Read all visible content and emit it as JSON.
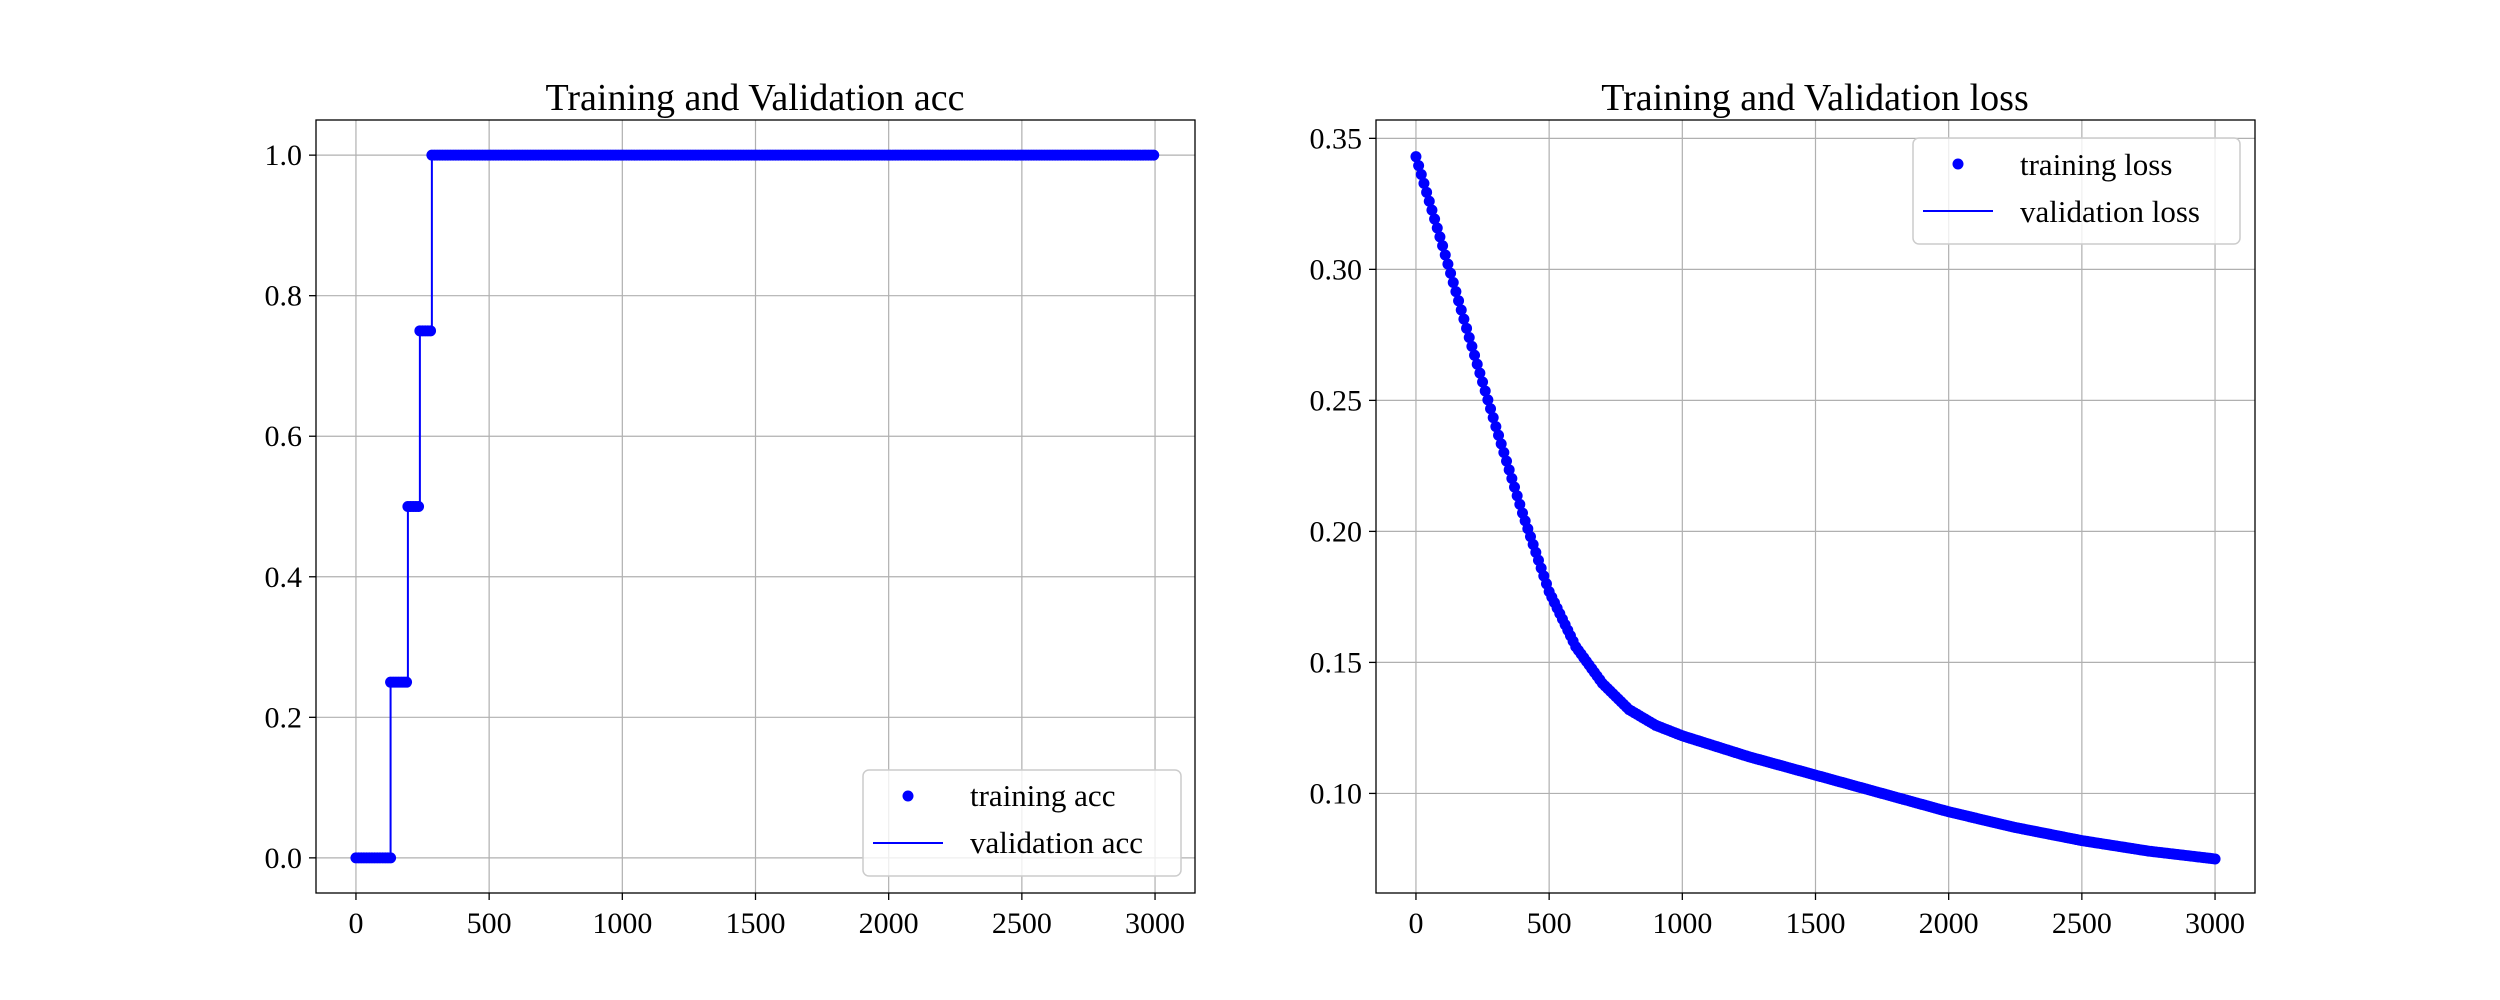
{
  "colors": {
    "series": "#0000ff",
    "grid": "#b0b0b0",
    "axis": "#000000",
    "legend_border": "#cccccc"
  },
  "chart_data": [
    {
      "type": "line",
      "title": "Training and Validation acc",
      "xlabel": "",
      "ylabel": "",
      "xlim": [
        -150,
        3150
      ],
      "ylim": [
        -0.05,
        1.05
      ],
      "xticks": [
        0,
        500,
        1000,
        1500,
        2000,
        2500,
        3000
      ],
      "xtick_labels": [
        "0",
        "500",
        "1000",
        "1500",
        "2000",
        "2500",
        "3000"
      ],
      "yticks": [
        0.0,
        0.2,
        0.4,
        0.6,
        0.8,
        1.0
      ],
      "ytick_labels": [
        "0.0",
        "0.2",
        "0.4",
        "0.6",
        "0.8",
        "1.0"
      ],
      "grid": true,
      "legend": {
        "position": "lower-right"
      },
      "series": [
        {
          "name": "training acc",
          "style": "dots",
          "segments": [
            {
              "x_start": 0,
              "x_end": 130,
              "y": 0.0
            },
            {
              "x_start": 130,
              "x_end": 195,
              "y": 0.25
            },
            {
              "x_start": 195,
              "x_end": 240,
              "y": 0.5
            },
            {
              "x_start": 240,
              "x_end": 285,
              "y": 0.75
            },
            {
              "x_start": 285,
              "x_end": 3000,
              "y": 1.0
            }
          ]
        },
        {
          "name": "validation acc",
          "style": "line",
          "segments": [
            {
              "x_start": 0,
              "x_end": 130,
              "y": 0.0
            },
            {
              "x_start": 130,
              "x_end": 195,
              "y": 0.25
            },
            {
              "x_start": 195,
              "x_end": 240,
              "y": 0.5
            },
            {
              "x_start": 240,
              "x_end": 285,
              "y": 0.75
            },
            {
              "x_start": 285,
              "x_end": 3000,
              "y": 1.0
            }
          ]
        }
      ]
    },
    {
      "type": "line",
      "title": "Training and Validation loss",
      "xlabel": "",
      "ylabel": "",
      "xlim": [
        -150,
        3150
      ],
      "ylim": [
        0.062,
        0.357
      ],
      "xticks": [
        0,
        500,
        1000,
        1500,
        2000,
        2500,
        3000
      ],
      "xtick_labels": [
        "0",
        "500",
        "1000",
        "1500",
        "2000",
        "2500",
        "3000"
      ],
      "yticks": [
        0.1,
        0.15,
        0.2,
        0.25,
        0.3,
        0.35
      ],
      "ytick_labels": [
        "0.10",
        "0.15",
        "0.20",
        "0.25",
        "0.30",
        "0.35"
      ],
      "grid": true,
      "legend": {
        "position": "upper-right"
      },
      "series": [
        {
          "name": "training loss",
          "style": "dots",
          "x": [
            0,
            100,
            200,
            300,
            400,
            500,
            600,
            700,
            800,
            900,
            1000,
            1250,
            1500,
            1750,
            2000,
            2250,
            2500,
            2750,
            3000
          ],
          "y": [
            0.343,
            0.309,
            0.274,
            0.24,
            0.207,
            0.177,
            0.156,
            0.142,
            0.132,
            0.126,
            0.122,
            0.114,
            0.107,
            0.1,
            0.093,
            0.087,
            0.082,
            0.078,
            0.075
          ]
        },
        {
          "name": "validation loss",
          "style": "line",
          "x": [
            0,
            100,
            200,
            300,
            400,
            500,
            600,
            700,
            800,
            900,
            1000,
            1250,
            1500,
            1750,
            2000,
            2250,
            2500,
            2750,
            3000
          ],
          "y": [
            0.343,
            0.309,
            0.274,
            0.24,
            0.207,
            0.177,
            0.156,
            0.142,
            0.132,
            0.126,
            0.122,
            0.114,
            0.107,
            0.1,
            0.093,
            0.087,
            0.082,
            0.078,
            0.075
          ]
        }
      ]
    }
  ]
}
